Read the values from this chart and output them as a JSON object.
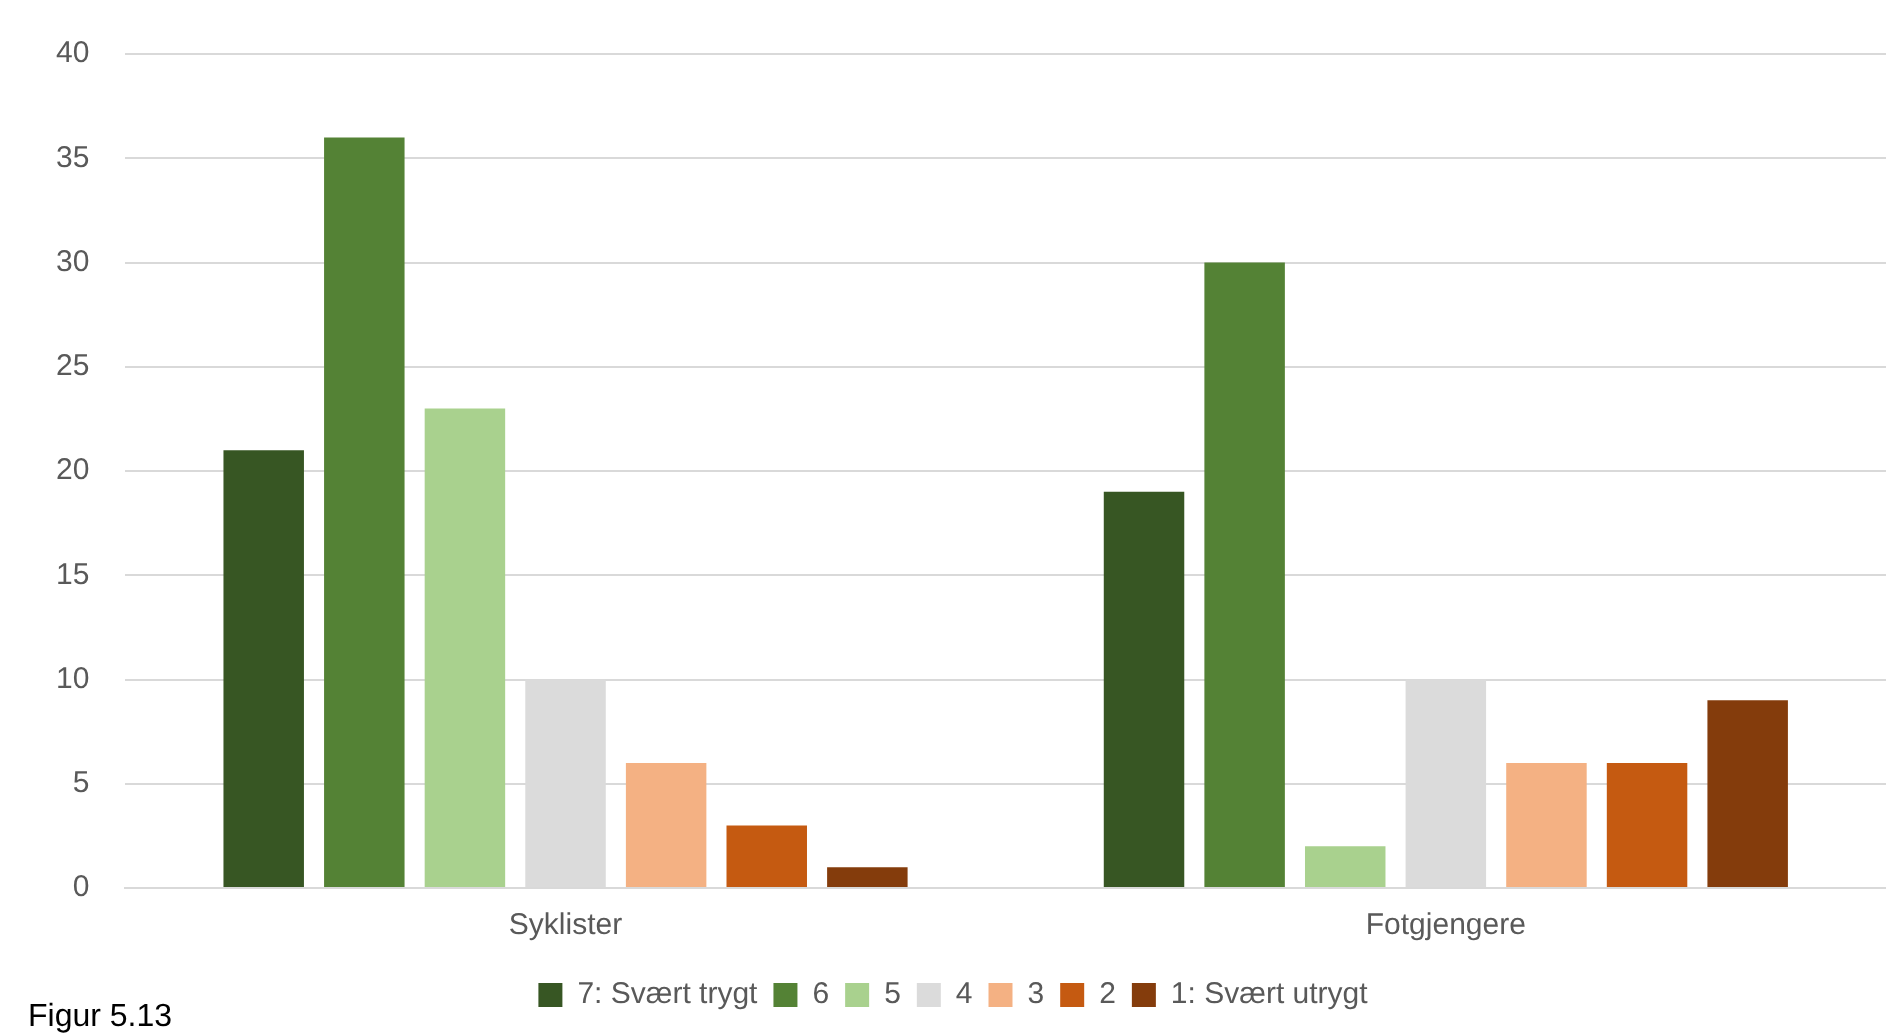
{
  "chart_data": {
    "type": "bar",
    "categories": [
      "Syklister",
      "Fotgjengere"
    ],
    "series": [
      {
        "name": "7: Svært trygt",
        "color": "#375623",
        "values": [
          21,
          19
        ]
      },
      {
        "name": "6",
        "color": "#548235",
        "values": [
          36,
          30
        ]
      },
      {
        "name": "5",
        "color": "#a9d18e",
        "values": [
          23,
          2
        ]
      },
      {
        "name": "4",
        "color": "#dbdbdb",
        "values": [
          10,
          10
        ]
      },
      {
        "name": "3",
        "color": "#f4b183",
        "values": [
          6,
          6
        ]
      },
      {
        "name": "2",
        "color": "#c55a11",
        "values": [
          3,
          6
        ]
      },
      {
        "name": "1: Svært utrygt",
        "color": "#843c0c",
        "values": [
          1,
          9
        ]
      }
    ],
    "ylim": [
      0,
      40
    ],
    "yticks": [
      0,
      5,
      10,
      15,
      20,
      25,
      30,
      35,
      40
    ],
    "grid": "y",
    "legend": "bottom",
    "annotations": [
      "Figur 5.13"
    ]
  }
}
